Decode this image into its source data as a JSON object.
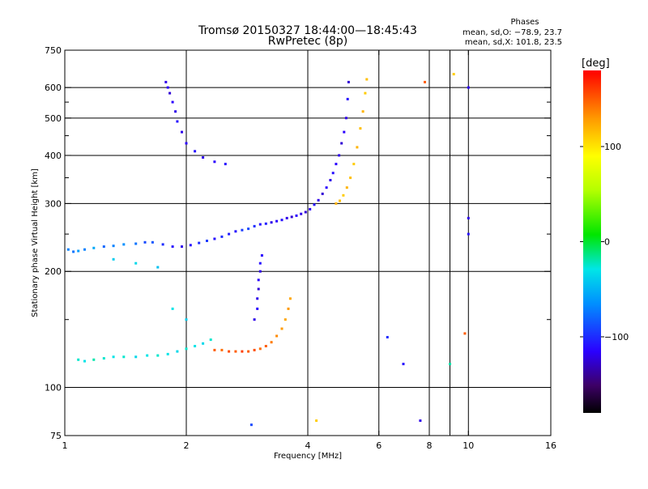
{
  "chart_data": {
    "type": "scatter",
    "title": "Tromsø 20150327 18:44:00—18:45:43",
    "subtitle": "RwPretec (8p)",
    "xlabel": "Frequency [MHz]",
    "ylabel": "Stationary phase Virtual Height [km]",
    "x_scale": "log",
    "y_scale": "log",
    "xlim": [
      1,
      16
    ],
    "ylim": [
      75,
      750
    ],
    "x_ticks": [
      1,
      2,
      4,
      6,
      8,
      9,
      10,
      16
    ],
    "x_ticklabels": [
      "1",
      "2",
      "4",
      "6",
      "8",
      "",
      "10",
      "16"
    ],
    "y_ticks": [
      75,
      100,
      200,
      300,
      400,
      500,
      600,
      750
    ],
    "y_minor": [
      150,
      250,
      350,
      450,
      550
    ],
    "grid": true,
    "stats": {
      "title": "Phases",
      "line_o": "mean, sd,O: −78.9, 23.7",
      "line_x": "mean, sd,X: 101.8, 23.5"
    },
    "colorbar": {
      "label": "[deg]",
      "min": -180,
      "max": 180,
      "ticks": [
        100,
        0,
        -100
      ],
      "ticklabels": [
        "100",
        "0",
        "−100"
      ]
    },
    "series": [
      {
        "points": [
          [
            1.02,
            228,
            -70
          ],
          [
            1.05,
            225,
            -75
          ],
          [
            1.08,
            226,
            -60
          ],
          [
            1.12,
            228,
            -70
          ],
          [
            1.18,
            230,
            -55
          ],
          [
            1.25,
            232,
            -80
          ],
          [
            1.32,
            233,
            -70
          ],
          [
            1.4,
            235,
            -65
          ],
          [
            1.5,
            236,
            -75
          ],
          [
            1.58,
            238,
            -90
          ],
          [
            1.65,
            238,
            -85
          ],
          [
            1.75,
            235,
            -100
          ],
          [
            1.85,
            232,
            -110
          ],
          [
            1.95,
            232,
            -120
          ],
          [
            2.05,
            234,
            -110
          ],
          [
            2.15,
            237,
            -100
          ],
          [
            2.25,
            240,
            -95
          ],
          [
            2.35,
            243,
            -110
          ],
          [
            2.45,
            246,
            -100
          ],
          [
            2.55,
            250,
            -105
          ],
          [
            2.65,
            254,
            -110
          ],
          [
            2.75,
            256,
            -95
          ],
          [
            2.85,
            258,
            -90
          ],
          [
            2.95,
            262,
            -100
          ],
          [
            3.05,
            265,
            -110
          ],
          [
            3.15,
            266,
            -105
          ],
          [
            3.25,
            268,
            -120
          ],
          [
            3.35,
            270,
            -115
          ],
          [
            3.45,
            272,
            -110
          ],
          [
            3.55,
            275,
            -120
          ],
          [
            3.65,
            277,
            -125
          ],
          [
            3.75,
            279,
            -115
          ],
          [
            3.85,
            282,
            -120
          ],
          [
            3.95,
            285,
            -125
          ],
          [
            4.05,
            290,
            -115
          ],
          [
            4.15,
            298,
            -110
          ],
          [
            4.25,
            306,
            -120
          ],
          [
            4.35,
            318,
            -125
          ],
          [
            4.45,
            330,
            -115
          ],
          [
            4.55,
            345,
            -120
          ],
          [
            4.62,
            360,
            -110
          ],
          [
            4.7,
            380,
            -115
          ],
          [
            4.78,
            400,
            -120
          ],
          [
            4.85,
            430,
            -125
          ],
          [
            4.92,
            460,
            -115
          ],
          [
            4.98,
            500,
            -120
          ],
          [
            5.02,
            560,
            -110
          ],
          [
            5.05,
            620,
            -125
          ]
        ]
      },
      {
        "points": [
          [
            1.08,
            118,
            -25
          ],
          [
            1.12,
            117,
            -30
          ],
          [
            1.18,
            118,
            -20
          ],
          [
            1.25,
            119,
            -25
          ],
          [
            1.32,
            120,
            -30
          ],
          [
            1.4,
            120,
            -25
          ],
          [
            1.5,
            120,
            -35
          ],
          [
            1.6,
            121,
            -30
          ],
          [
            1.7,
            121,
            -25
          ],
          [
            1.8,
            122,
            -30
          ],
          [
            1.9,
            124,
            -35
          ],
          [
            2.0,
            126,
            -25
          ],
          [
            2.1,
            128,
            -30
          ],
          [
            2.2,
            130,
            -35
          ],
          [
            2.3,
            133,
            -25
          ]
        ]
      },
      {
        "points": [
          [
            2.35,
            125,
            150
          ],
          [
            2.45,
            125,
            145
          ],
          [
            2.55,
            124,
            155
          ],
          [
            2.65,
            124,
            150
          ],
          [
            2.75,
            124,
            160
          ],
          [
            2.85,
            124,
            150
          ],
          [
            2.95,
            125,
            155
          ],
          [
            3.05,
            126,
            145
          ],
          [
            3.15,
            128,
            150
          ],
          [
            3.25,
            131,
            140
          ],
          [
            3.35,
            136,
            135
          ],
          [
            3.45,
            142,
            130
          ],
          [
            3.52,
            150,
            125
          ],
          [
            3.58,
            160,
            130
          ],
          [
            3.62,
            170,
            125
          ]
        ]
      },
      {
        "points": [
          [
            2.95,
            150,
            -120
          ],
          [
            3.0,
            160,
            -115
          ],
          [
            3.0,
            170,
            -120
          ],
          [
            3.02,
            180,
            -125
          ],
          [
            3.02,
            190,
            -115
          ],
          [
            3.05,
            200,
            -120
          ],
          [
            3.05,
            210,
            -110
          ],
          [
            3.08,
            220,
            -115
          ]
        ]
      },
      {
        "points": [
          [
            1.78,
            620,
            -120
          ],
          [
            1.8,
            600,
            -115
          ],
          [
            1.82,
            580,
            -125
          ],
          [
            1.85,
            550,
            -115
          ],
          [
            1.88,
            520,
            -120
          ],
          [
            1.9,
            490,
            -110
          ],
          [
            1.95,
            460,
            -120
          ],
          [
            2.0,
            430,
            -115
          ],
          [
            2.1,
            410,
            -110
          ],
          [
            2.2,
            395,
            -120
          ],
          [
            2.35,
            385,
            -115
          ],
          [
            2.5,
            380,
            -110
          ]
        ]
      },
      {
        "points": [
          [
            4.7,
            300,
            120
          ],
          [
            4.8,
            305,
            115
          ],
          [
            4.9,
            315,
            110
          ],
          [
            5.0,
            330,
            120
          ],
          [
            5.1,
            350,
            115
          ],
          [
            5.2,
            380,
            110
          ],
          [
            5.3,
            420,
            120
          ],
          [
            5.4,
            470,
            115
          ],
          [
            5.48,
            520,
            120
          ],
          [
            5.55,
            580,
            110
          ],
          [
            5.6,
            630,
            115
          ]
        ]
      },
      {
        "points": [
          [
            1.32,
            215,
            -40
          ],
          [
            1.5,
            210,
            -35
          ],
          [
            1.7,
            205,
            -45
          ],
          [
            1.85,
            160,
            -30
          ],
          [
            2.0,
            150,
            -40
          ],
          [
            6.3,
            135,
            -100
          ],
          [
            6.9,
            115,
            -110
          ],
          [
            7.6,
            82,
            -120
          ],
          [
            9.0,
            115,
            -20
          ],
          [
            9.8,
            138,
            150
          ],
          [
            10.0,
            250,
            -110
          ],
          [
            10.0,
            275,
            -120
          ],
          [
            10.0,
            600,
            -115
          ],
          [
            9.2,
            650,
            110
          ],
          [
            7.8,
            620,
            150
          ],
          [
            2.9,
            80,
            -90
          ],
          [
            4.2,
            82,
            110
          ]
        ]
      }
    ]
  }
}
